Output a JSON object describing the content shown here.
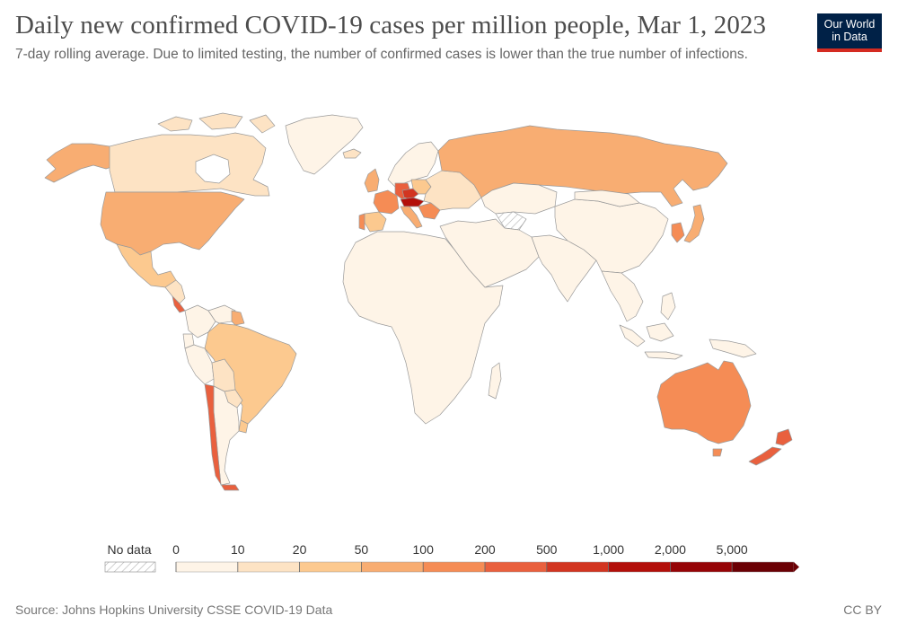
{
  "header": {
    "title": "Daily new confirmed COVID-19 cases per million people, Mar 1, 2023",
    "subtitle": "7-day rolling average. Due to limited testing, the number of confirmed cases is lower than the true number of infections.",
    "logo_line1": "Our World",
    "logo_line2": "in Data"
  },
  "legend": {
    "no_data_label": "No data",
    "bins": [
      {
        "label": "0",
        "color": "#fef4e7"
      },
      {
        "label": "10",
        "color": "#fde3c4"
      },
      {
        "label": "20",
        "color": "#fcc98f"
      },
      {
        "label": "50",
        "color": "#f8ad72"
      },
      {
        "label": "100",
        "color": "#f58c55"
      },
      {
        "label": "200",
        "color": "#e9603e"
      },
      {
        "label": "500",
        "color": "#d23521"
      },
      {
        "label": "1,000",
        "color": "#b30f0a"
      },
      {
        "label": "2,000",
        "color": "#960407"
      },
      {
        "label": "5,000",
        "color": "#6b0004"
      }
    ]
  },
  "map": {
    "regions": [
      {
        "name": "Canada",
        "color": "#fde3c4"
      },
      {
        "name": "United States",
        "color": "#f8ad72"
      },
      {
        "name": "Alaska",
        "color": "#f8ad72"
      },
      {
        "name": "Greenland",
        "color": "#fef4e7"
      },
      {
        "name": "Mexico",
        "color": "#fcc98f"
      },
      {
        "name": "Central America",
        "color": "#fde3c4"
      },
      {
        "name": "Costa Rica",
        "color": "#e9603e"
      },
      {
        "name": "Colombia",
        "color": "#fef4e7"
      },
      {
        "name": "Venezuela",
        "color": "#fef4e7"
      },
      {
        "name": "Guyana",
        "color": "#f8ad72"
      },
      {
        "name": "Ecuador",
        "color": "#fef4e7"
      },
      {
        "name": "Peru",
        "color": "#fef4e7"
      },
      {
        "name": "Bolivia",
        "color": "#fde3c4"
      },
      {
        "name": "Brazil",
        "color": "#fcc98f"
      },
      {
        "name": "Paraguay",
        "color": "#fde3c4"
      },
      {
        "name": "Uruguay",
        "color": "#fcc98f"
      },
      {
        "name": "Argentina",
        "color": "#fef4e7"
      },
      {
        "name": "Chile",
        "color": "#e9603e"
      },
      {
        "name": "Iceland",
        "color": "#fde3c4"
      },
      {
        "name": "Scandinavia",
        "color": "#fef4e7"
      },
      {
        "name": "United Kingdom",
        "color": "#f8ad72"
      },
      {
        "name": "France",
        "color": "#f58c55"
      },
      {
        "name": "Spain",
        "color": "#fcc98f"
      },
      {
        "name": "Portugal",
        "color": "#f58c55"
      },
      {
        "name": "Germany",
        "color": "#e9603e"
      },
      {
        "name": "Czechia",
        "color": "#d23521"
      },
      {
        "name": "Austria",
        "color": "#b30f0a"
      },
      {
        "name": "Italy",
        "color": "#f8ad72"
      },
      {
        "name": "Poland",
        "color": "#fcc98f"
      },
      {
        "name": "Eastern Europe",
        "color": "#fde3c4"
      },
      {
        "name": "Balkans",
        "color": "#f58c55"
      },
      {
        "name": "Russia",
        "color": "#f8ad72"
      },
      {
        "name": "Kazakhstan",
        "color": "#fef4e7"
      },
      {
        "name": "Turkmenistan",
        "color": "no-data"
      },
      {
        "name": "Middle East",
        "color": "#fef4e7"
      },
      {
        "name": "Africa",
        "color": "#fef4e7"
      },
      {
        "name": "Madagascar",
        "color": "#fef4e7"
      },
      {
        "name": "South Asia",
        "color": "#fef4e7"
      },
      {
        "name": "China",
        "color": "#fef4e7"
      },
      {
        "name": "Mongolia",
        "color": "#fef4e7"
      },
      {
        "name": "Korea",
        "color": "#f58c55"
      },
      {
        "name": "Japan",
        "color": "#f8ad72"
      },
      {
        "name": "Southeast Asia",
        "color": "#fef4e7"
      },
      {
        "name": "Indonesia",
        "color": "#fef4e7"
      },
      {
        "name": "Papua New Guinea",
        "color": "#fef4e7"
      },
      {
        "name": "Australia",
        "color": "#f58c55"
      },
      {
        "name": "Tasmania",
        "color": "#f58c55"
      },
      {
        "name": "New Zealand",
        "color": "#e9603e"
      }
    ]
  },
  "footer": {
    "source": "Source: Johns Hopkins University CSSE COVID-19 Data",
    "license": "CC BY"
  }
}
